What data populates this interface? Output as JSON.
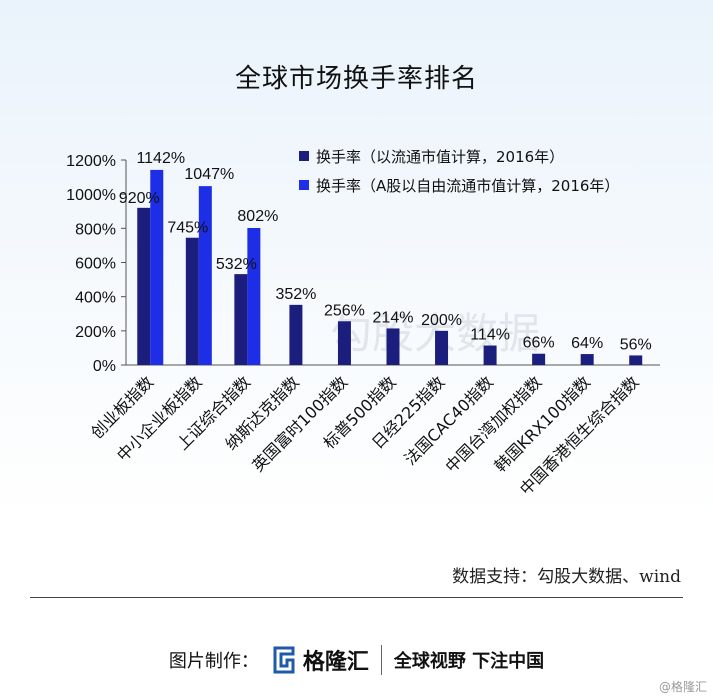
{
  "colors": {
    "series_dark": "#1c1e7e",
    "series_bright": "#1d2ee6"
  },
  "chart_data": {
    "type": "bar",
    "title": "全球市场换手率排名",
    "categories": [
      "创业板指数",
      "中小企业板指数",
      "上证综合指数",
      "纳斯达克指数",
      "英国富时100指数",
      "标普500指数",
      "日经225指数",
      "法国CAC40指数",
      "中国台湾加权指数",
      "韩国KRX100指数",
      "中国香港恒生综合指数"
    ],
    "series": [
      {
        "name": "换手率（以流通市值计算，2016年）",
        "values": [
          920,
          745,
          532,
          352,
          256,
          214,
          200,
          114,
          66,
          64,
          56
        ],
        "labels": [
          "920%",
          "745%",
          "532%",
          "352%",
          "256%",
          "214%",
          "200%",
          "114%",
          "66%",
          "64%",
          "56%"
        ]
      },
      {
        "name": "换手率（A股以自由流通市值计算，2016年）",
        "values": [
          1142,
          1047,
          802,
          null,
          null,
          null,
          null,
          null,
          null,
          null,
          null
        ],
        "labels": [
          "1142%",
          "1047%",
          "802%"
        ]
      }
    ],
    "yticks": [
      "0%",
      "200%",
      "400%",
      "600%",
      "800%",
      "1000%",
      "1200%"
    ],
    "ylim": [
      0,
      1200
    ],
    "grid": false,
    "legend_position": "top-right"
  },
  "watermark_text": "勾股大数据",
  "source": "数据支持：勾股大数据、wind",
  "footer": {
    "prefix": "图片制作：",
    "brand": "格隆汇",
    "slogan": "全球视野 下注中国"
  },
  "corner_watermark": "@格隆汇"
}
